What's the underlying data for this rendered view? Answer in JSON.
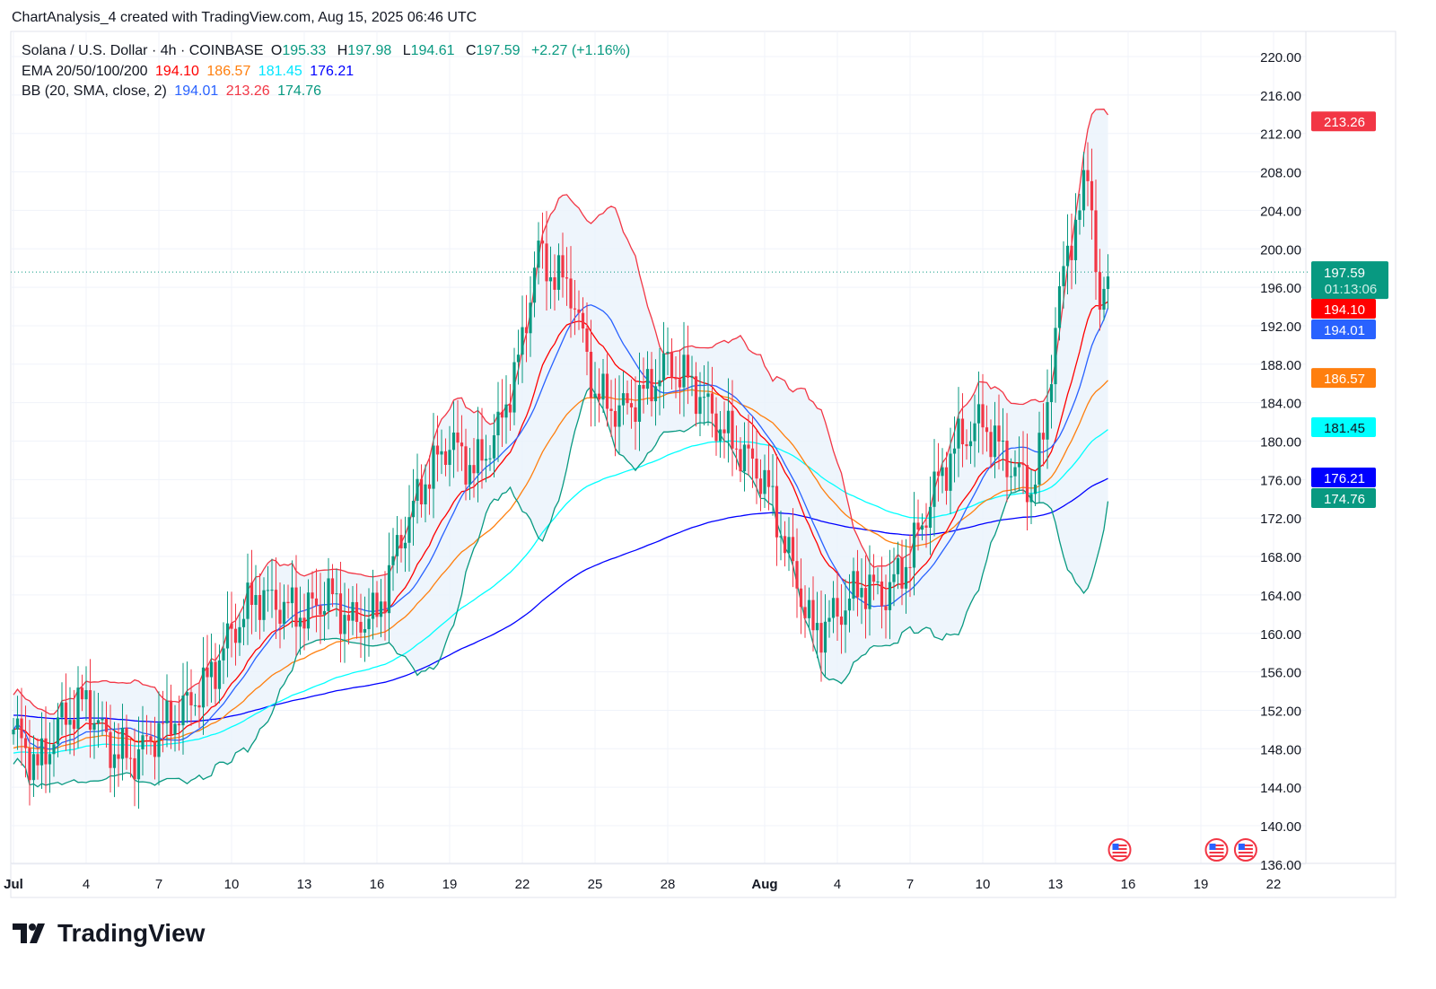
{
  "caption": "ChartAnalysis_4 created with TradingView.com, Aug 15, 2025 06:46 UTC",
  "legend": {
    "symbol": "Solana / U.S. Dollar · 4h · COINBASE",
    "o_label": "O",
    "o": "195.33",
    "h_label": "H",
    "h": "197.98",
    "l_label": "L",
    "l": "194.61",
    "c_label": "C",
    "c": "197.59",
    "change": "+2.27 (+1.16%)",
    "ema_label": "EMA 20/50/100/200",
    "ema20": "194.10",
    "ema50": "186.57",
    "ema100": "181.45",
    "ema200": "176.21",
    "bb_label": "BB (20, SMA, close, 2)",
    "bb_basis": "194.01",
    "bb_upper": "213.26",
    "bb_lower": "174.76"
  },
  "logo_text": "TradingView",
  "colors": {
    "up": "#089981",
    "down": "#f23645",
    "ema20": "#ff0000",
    "ema50": "#ff7f0e",
    "ema100": "#00ffff",
    "ema200": "#0000ff",
    "bb_basis": "#2962ff",
    "bb_upper": "#f23645",
    "bb_lower": "#089981",
    "bb_fill": "#eaf2fb"
  },
  "chart_data": {
    "type": "candlestick",
    "title": "Solana / U.S. Dollar · 4h · COINBASE",
    "ylim": [
      136,
      220
    ],
    "y_ticks": [
      "220.00",
      "216.00",
      "212.00",
      "208.00",
      "204.00",
      "200.00",
      "196.00",
      "192.00",
      "188.00",
      "184.00",
      "180.00",
      "176.00",
      "172.00",
      "168.00",
      "164.00",
      "160.00",
      "156.00",
      "152.00",
      "148.00",
      "144.00",
      "140.00",
      "136.00"
    ],
    "x_ticks": [
      {
        "label": "Jul",
        "day": 0
      },
      {
        "label": "4",
        "day": 3
      },
      {
        "label": "7",
        "day": 6
      },
      {
        "label": "10",
        "day": 9
      },
      {
        "label": "13",
        "day": 12
      },
      {
        "label": "16",
        "day": 15
      },
      {
        "label": "19",
        "day": 18
      },
      {
        "label": "22",
        "day": 21
      },
      {
        "label": "25",
        "day": 24
      },
      {
        "label": "28",
        "day": 27
      },
      {
        "label": "Aug",
        "day": 31
      },
      {
        "label": "4",
        "day": 34
      },
      {
        "label": "7",
        "day": 37
      },
      {
        "label": "10",
        "day": 40
      },
      {
        "label": "13",
        "day": 43
      },
      {
        "label": "16",
        "day": 46
      },
      {
        "label": "19",
        "day": 49
      },
      {
        "label": "22",
        "day": 52
      }
    ],
    "close_keypoints_day": [
      0,
      1,
      2,
      3,
      4,
      5,
      6,
      7,
      8,
      9,
      10,
      11,
      12,
      13,
      14,
      15,
      16,
      17,
      18,
      19,
      20,
      21,
      21.6,
      22,
      23,
      24,
      25,
      26,
      27,
      28,
      29,
      30,
      31,
      32,
      33,
      34,
      35,
      36,
      37,
      38,
      39,
      40,
      41,
      42,
      42.5,
      43,
      43.5,
      44,
      44.4,
      44.8,
      45.2
    ],
    "close_keypoints": [
      150,
      146,
      151,
      153,
      148,
      147,
      150,
      152,
      155,
      160,
      164,
      163,
      162,
      164,
      161,
      162,
      170,
      176,
      180,
      177,
      181,
      190,
      200,
      198,
      196,
      185,
      183,
      185,
      188,
      186,
      182,
      179,
      176,
      168,
      160,
      162,
      165,
      164,
      168,
      175,
      180,
      182,
      178,
      175,
      180,
      192,
      200,
      204,
      208,
      193,
      197.59
    ],
    "last_price": {
      "value": "197.59",
      "countdown": "01:13:06"
    },
    "price_tags": [
      {
        "value": "213.26",
        "color": "#f23645",
        "text": "#fff"
      },
      {
        "value": "194.10",
        "color": "#ff0000",
        "text": "#fff"
      },
      {
        "value": "194.01",
        "color": "#2962ff",
        "text": "#fff"
      },
      {
        "value": "186.57",
        "color": "#ff7f0e",
        "text": "#fff"
      },
      {
        "value": "181.45",
        "color": "#00ffff",
        "text": "#131722"
      },
      {
        "value": "176.21",
        "color": "#0000ff",
        "text": "#fff"
      },
      {
        "value": "174.76",
        "color": "#089981",
        "text": "#fff"
      }
    ],
    "events": [
      {
        "day": 45.5,
        "icon": "us-flag-icon"
      },
      {
        "day": 49.5,
        "icon": "us-flag-icon"
      },
      {
        "day": 50.7,
        "icon": "us-flag-icon"
      }
    ],
    "series": [
      "EMA 20",
      "EMA 50",
      "EMA 100",
      "EMA 200",
      "BB basis",
      "BB upper",
      "BB lower"
    ]
  }
}
